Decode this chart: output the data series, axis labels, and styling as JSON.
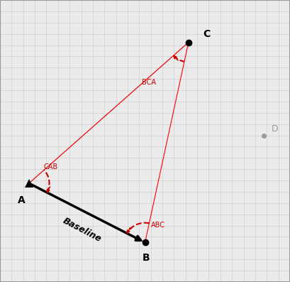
{
  "A": [
    0.1,
    0.35
  ],
  "B": [
    0.5,
    0.14
  ],
  "C": [
    0.65,
    0.85
  ],
  "D": [
    0.91,
    0.52
  ],
  "background": "#ebebeb",
  "grid_color": "#d0d0d0",
  "angle_color": "#cc0000",
  "label_A": "A",
  "label_B": "B",
  "label_C": "C",
  "label_D": "D",
  "label_baseline": "Baseline",
  "label_CAB": "CAB",
  "label_ABC": "ABC",
  "label_BCA": "BCA",
  "border_color": "#999999"
}
